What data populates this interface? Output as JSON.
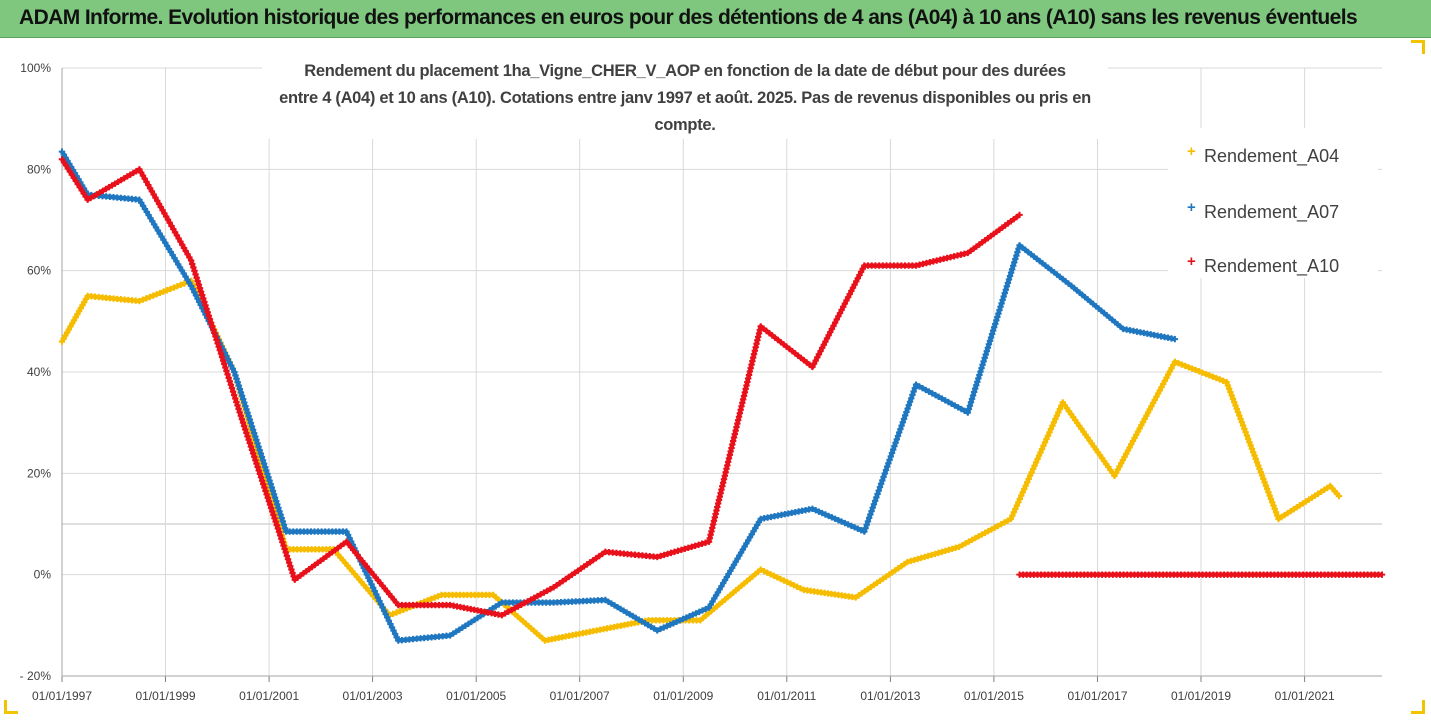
{
  "banner": {
    "title": "ADAM Informe. Evolution historique des performances en euros pour des détentions de 4 ans (A04) à 10 ans (A10) sans les revenus éventuels"
  },
  "colors": {
    "banner_bg": "#7fc77f",
    "A04": "#f5bc00",
    "A07": "#1f77c0",
    "A10": "#e8101a",
    "grid": "#d9d9d9",
    "text": "#404040"
  },
  "chart_data": {
    "type": "scatter",
    "title_line1": "Rendement du placement 1ha_Vigne_CHER_V_AOP en fonction de la date de début pour des durées",
    "title_line2": "entre 4 (A04) et 10 ans (A10). Cotations entre janv 1997 et août. 2025. Pas de revenus disponibles ou pris en compte.",
    "ylim": [
      -0.2,
      1.0
    ],
    "yticks": [
      -0.2,
      0,
      0.2,
      0.4,
      0.6,
      0.8,
      1.0
    ],
    "ytick_labels": [
      "- 20%",
      "0%",
      "20%",
      "40%",
      "60%",
      "80%",
      "100%"
    ],
    "xlim": [
      "1997-01-01",
      "2022-07-01"
    ],
    "xticks": [
      "1997-01-01",
      "1999-01-01",
      "2001-01-01",
      "2003-01-01",
      "2005-01-01",
      "2007-01-01",
      "2009-01-01",
      "2011-01-01",
      "2013-01-01",
      "2015-01-01",
      "2017-01-01",
      "2019-01-01",
      "2021-01-01"
    ],
    "xtick_labels": [
      "01/01/1997",
      "01/01/1999",
      "01/01/2001",
      "01/01/2003",
      "01/01/2005",
      "01/01/2007",
      "01/01/2009",
      "01/01/2011",
      "01/01/2013",
      "01/01/2015",
      "01/01/2017",
      "01/01/2019",
      "01/01/2021"
    ],
    "grid": true,
    "legend_position": "right",
    "marker": "+",
    "series": [
      {
        "name": "Rendement_A04",
        "color": "#f5bc00",
        "points": [
          [
            "1997-01-01",
            0.46
          ],
          [
            "1997-07-01",
            0.55
          ],
          [
            "1998-07-01",
            0.54
          ],
          [
            "1999-07-01",
            0.58
          ],
          [
            "2000-05-01",
            0.4
          ],
          [
            "2001-05-01",
            0.05
          ],
          [
            "2002-04-01",
            0.05
          ],
          [
            "2003-05-01",
            -0.08
          ],
          [
            "2004-05-01",
            -0.04
          ],
          [
            "2005-05-01",
            -0.04
          ],
          [
            "2006-05-01",
            -0.13
          ],
          [
            "2007-05-01",
            -0.11
          ],
          [
            "2008-05-01",
            -0.09
          ],
          [
            "2009-05-01",
            -0.09
          ],
          [
            "2010-07-01",
            0.01
          ],
          [
            "2011-05-01",
            -0.03
          ],
          [
            "2012-05-01",
            -0.045
          ],
          [
            "2013-05-01",
            0.025
          ],
          [
            "2014-05-01",
            0.055
          ],
          [
            "2015-05-01",
            0.11
          ],
          [
            "2016-05-01",
            0.34
          ],
          [
            "2017-05-01",
            0.195
          ],
          [
            "2018-07-01",
            0.42
          ],
          [
            "2019-07-01",
            0.38
          ],
          [
            "2020-07-01",
            0.11
          ],
          [
            "2021-07-01",
            0.175
          ],
          [
            "2021-09-01",
            0.155
          ]
        ]
      },
      {
        "name": "Rendement_A07",
        "color": "#1f77c0",
        "points": [
          [
            "1997-01-01",
            0.835
          ],
          [
            "1997-07-01",
            0.75
          ],
          [
            "1998-07-01",
            0.74
          ],
          [
            "1999-07-01",
            0.57
          ],
          [
            "2000-05-01",
            0.4
          ],
          [
            "2001-05-01",
            0.085
          ],
          [
            "2002-07-01",
            0.085
          ],
          [
            "2003-07-01",
            -0.13
          ],
          [
            "2004-07-01",
            -0.12
          ],
          [
            "2005-07-01",
            -0.055
          ],
          [
            "2006-07-01",
            -0.055
          ],
          [
            "2007-07-01",
            -0.05
          ],
          [
            "2008-07-01",
            -0.11
          ],
          [
            "2009-07-01",
            -0.065
          ],
          [
            "2010-07-01",
            0.11
          ],
          [
            "2011-07-01",
            0.13
          ],
          [
            "2012-07-01",
            0.085
          ],
          [
            "2013-07-01",
            0.375
          ],
          [
            "2014-07-01",
            0.32
          ],
          [
            "2015-07-01",
            0.65
          ],
          [
            "2016-07-01",
            0.57
          ],
          [
            "2017-07-01",
            0.485
          ],
          [
            "2018-07-01",
            0.465
          ]
        ]
      },
      {
        "name": "Rendement_A10",
        "color": "#e8101a",
        "points": [
          [
            "1997-01-01",
            0.82
          ],
          [
            "1997-07-01",
            0.74
          ],
          [
            "1998-07-01",
            0.8
          ],
          [
            "1999-07-01",
            0.62
          ],
          [
            "2000-07-01",
            0.3
          ],
          [
            "2001-07-01",
            -0.01
          ],
          [
            "2002-07-01",
            0.065
          ],
          [
            "2003-07-01",
            -0.06
          ],
          [
            "2004-07-01",
            -0.06
          ],
          [
            "2005-07-01",
            -0.08
          ],
          [
            "2006-07-01",
            -0.025
          ],
          [
            "2007-07-01",
            0.045
          ],
          [
            "2008-07-01",
            0.035
          ],
          [
            "2009-07-01",
            0.065
          ],
          [
            "2010-07-01",
            0.49
          ],
          [
            "2011-07-01",
            0.41
          ],
          [
            "2012-07-01",
            0.61
          ],
          [
            "2013-07-01",
            0.61
          ],
          [
            "2014-07-01",
            0.635
          ],
          [
            "2015-07-01",
            0.71
          ]
        ],
        "baseline_segment": [
          [
            "2015-07-01",
            0
          ],
          [
            "2022-07-01",
            0
          ]
        ]
      }
    ]
  }
}
